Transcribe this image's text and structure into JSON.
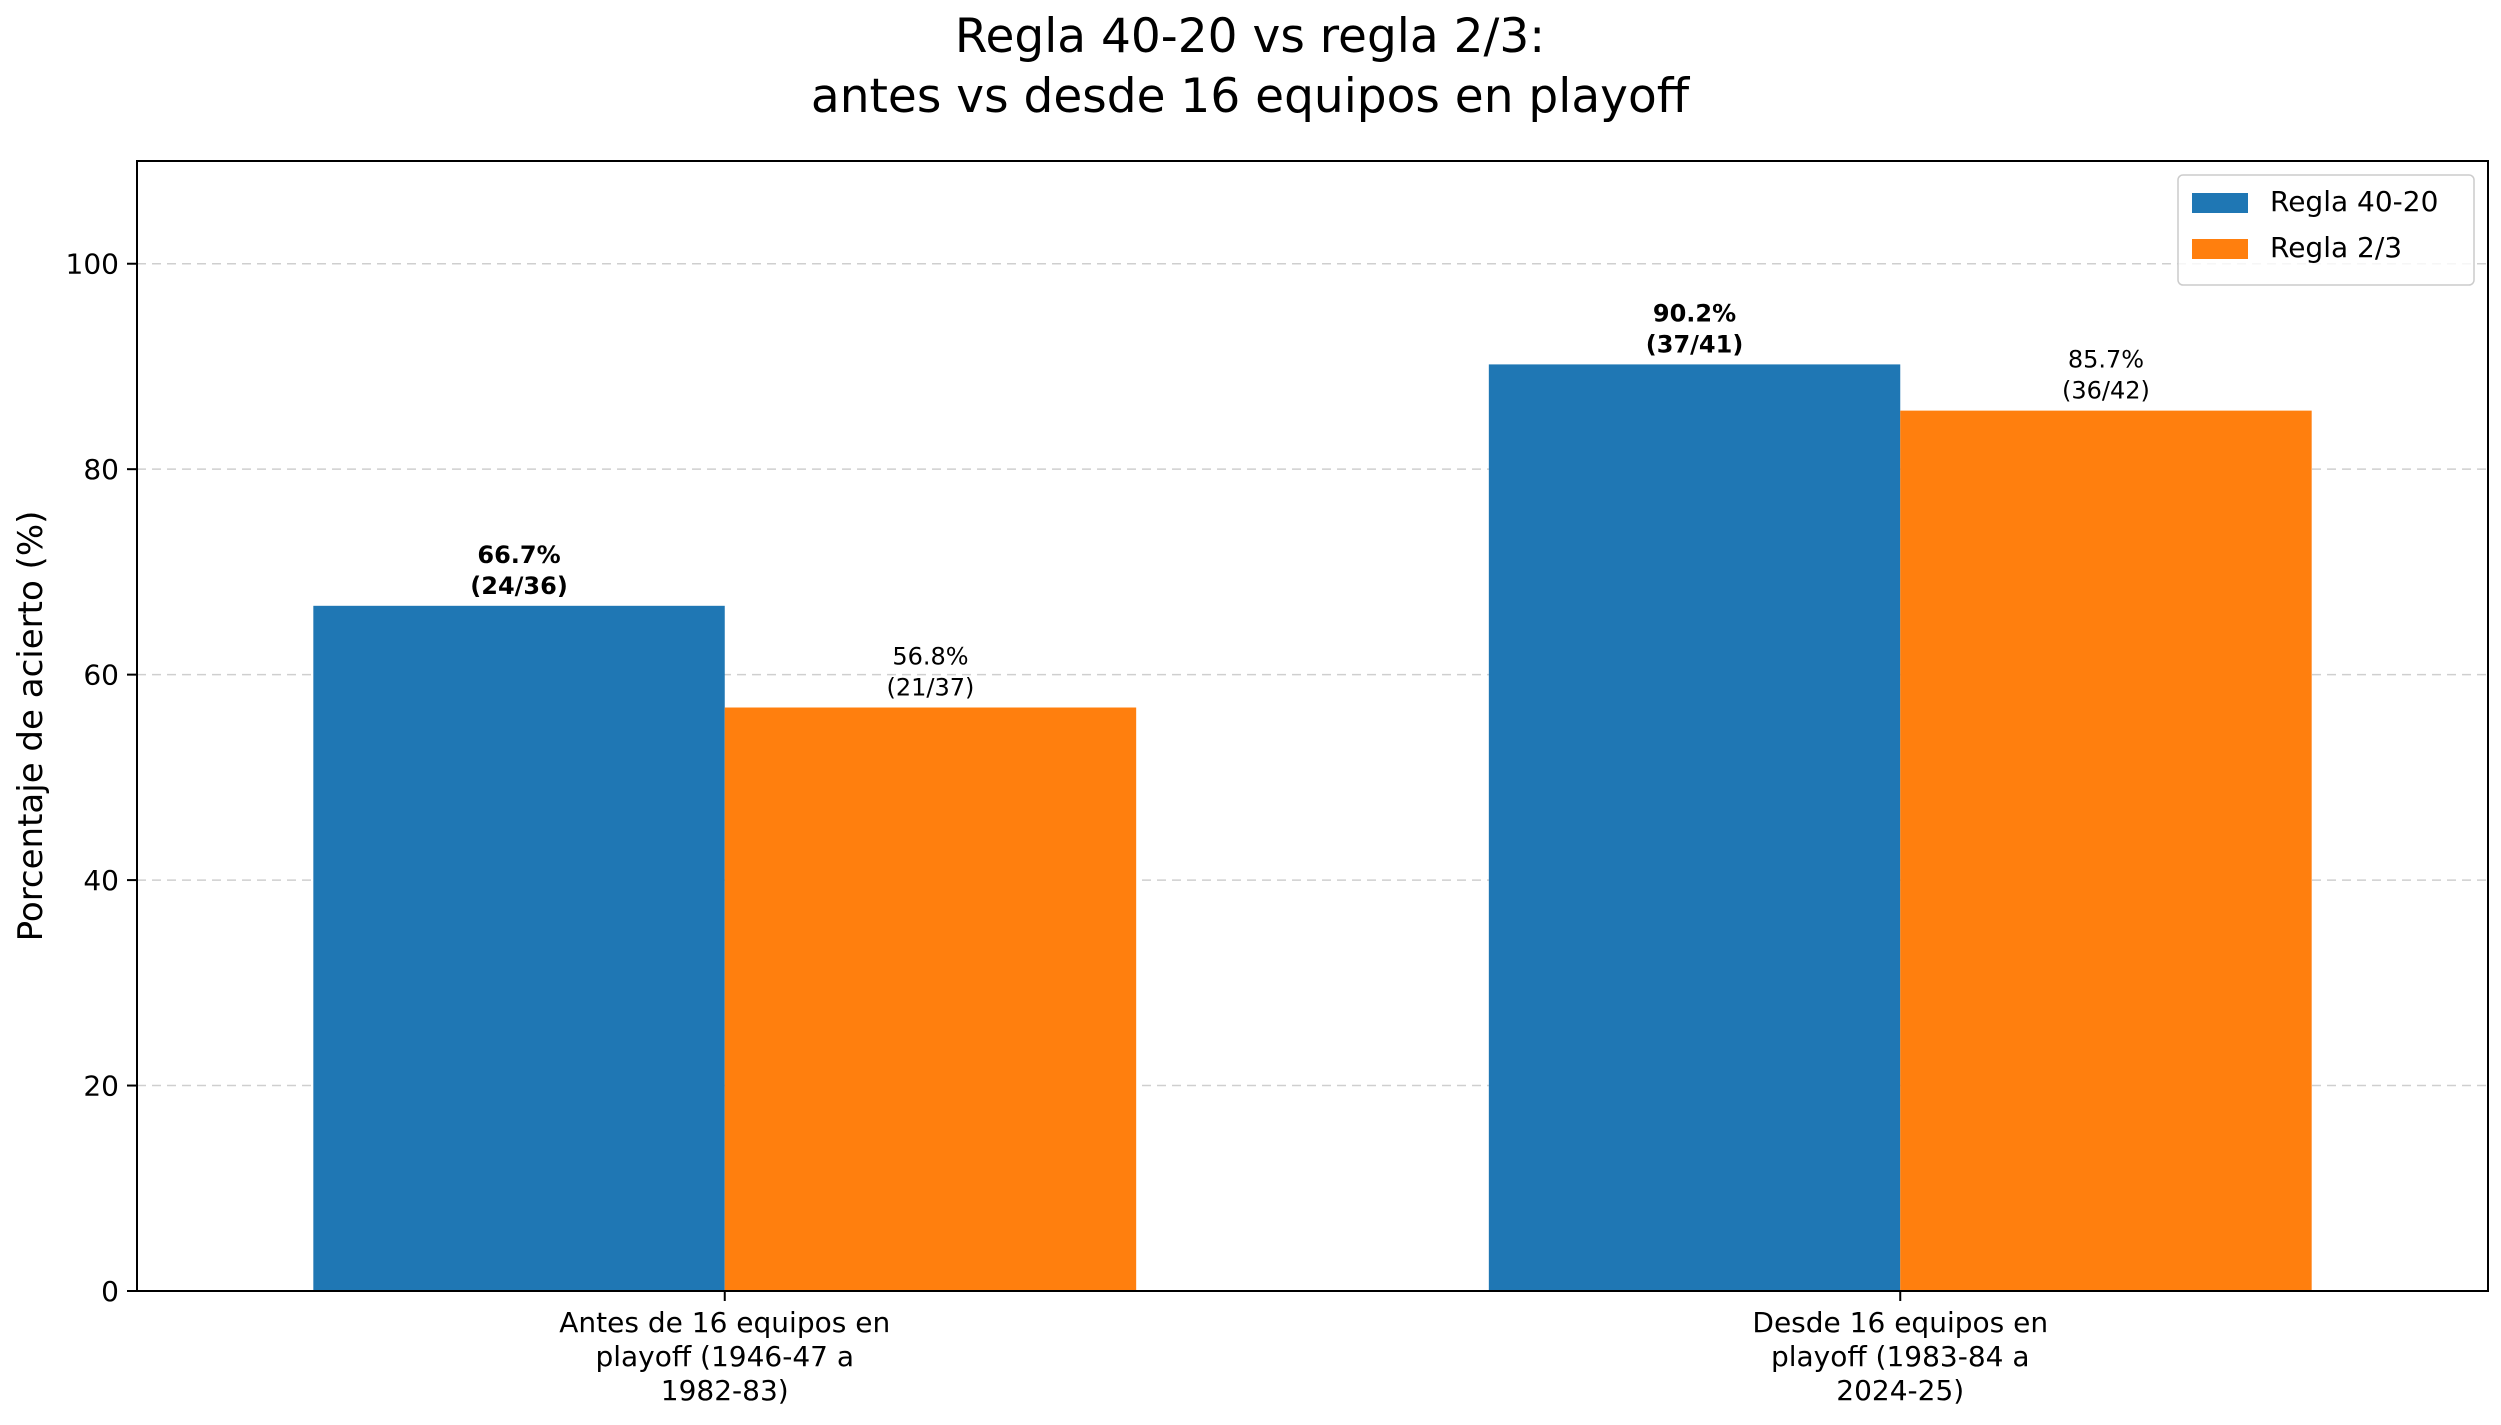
{
  "chart_data": {
    "type": "bar",
    "title": "Regla 40-20 vs regla 2/3:",
    "subtitle": "antes vs desde 16 equipos en playoff",
    "xlabel": "",
    "ylabel": "Porcentaje de acierto (%)",
    "ylim": [
      0,
      110
    ],
    "yticks": [
      0,
      20,
      40,
      60,
      80,
      100
    ],
    "grid": "y-dashed",
    "legend_position": "top-right",
    "categories": [
      [
        "Antes de 16 equipos en",
        "playoff (1946-47 a",
        "1982-83)"
      ],
      [
        "Desde 16 equipos en",
        "playoff (1983-84 a",
        "2024-25)"
      ]
    ],
    "series": [
      {
        "name": "Regla 40-20",
        "color": "#1f77b4",
        "values": [
          66.7,
          90.2
        ],
        "labels": [
          [
            "66.7%",
            "(24/36)"
          ],
          [
            "90.2%",
            "(37/41)"
          ]
        ],
        "label_bold": true
      },
      {
        "name": "Regla 2/3",
        "color": "#ff7f0e",
        "values": [
          56.8,
          85.7
        ],
        "labels": [
          [
            "56.8%",
            "(21/37)"
          ],
          [
            "85.7%",
            "(36/42)"
          ]
        ],
        "label_bold": false
      }
    ]
  }
}
